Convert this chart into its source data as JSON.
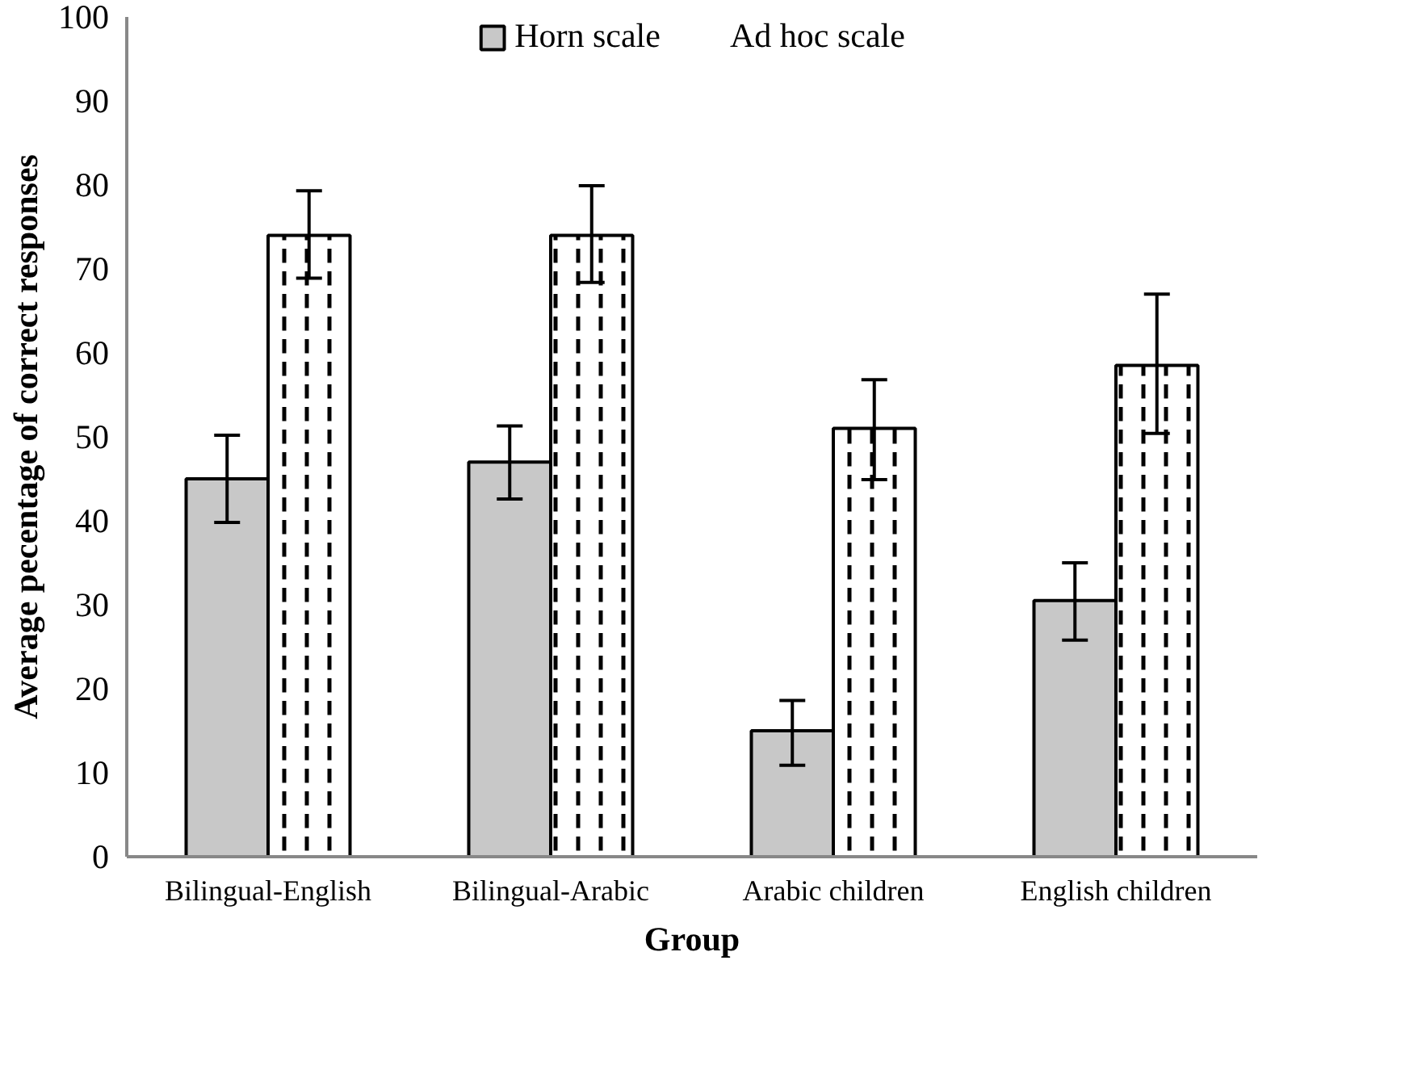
{
  "chart_data": {
    "type": "bar",
    "xlabel": "Group",
    "ylabel": "Average pecentage of correct responses",
    "categories": [
      "Bilingual-English",
      "Bilingual-Arabic",
      "Arabic children",
      "English children"
    ],
    "series": [
      {
        "name": "Horn scale",
        "color": "#c8c8c8",
        "values": [
          45,
          47,
          15,
          30.5
        ],
        "errors": [
          [
            39.8,
            50.2
          ],
          [
            42.6,
            51.3
          ],
          [
            10.9,
            18.6
          ],
          [
            25.8,
            35.0
          ]
        ]
      },
      {
        "name": "Ad hoc scale",
        "color": "#ffffff",
        "values": [
          74,
          74,
          51,
          58.5
        ],
        "errors": [
          [
            68.9,
            79.3
          ],
          [
            68.4,
            79.9
          ],
          [
            44.9,
            56.8
          ],
          [
            50.4,
            67.0
          ]
        ]
      }
    ],
    "ylim": [
      0,
      100
    ],
    "yticks": [
      0,
      10,
      20,
      30,
      40,
      50,
      60,
      70,
      80,
      90,
      100
    ],
    "grid": false,
    "legend": "top"
  }
}
